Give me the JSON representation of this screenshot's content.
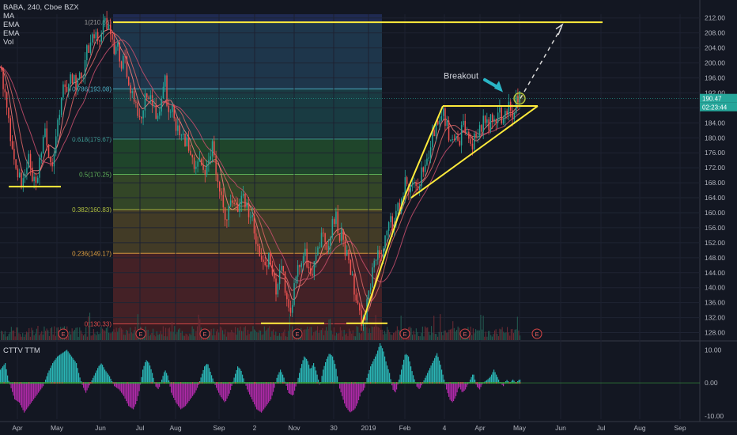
{
  "header": {
    "symbol_line": "BABA, 240, Cboe BZX",
    "indicators": [
      "MA",
      "EMA",
      "EMA",
      "Vol"
    ]
  },
  "indicator_panel": {
    "label": "CTTV TTM"
  },
  "chart_data": {
    "type": "candlestick",
    "symbol": "BABA",
    "interval": "240",
    "exchange": "Cboe BZX",
    "x_ticks": [
      "Apr",
      "May",
      "Jun",
      "Jul",
      "Aug",
      "Sep",
      "2",
      "Nov",
      "30",
      "2019",
      "Feb",
      "4",
      "Apr",
      "May",
      "Jun",
      "Jul",
      "Aug",
      "Sep"
    ],
    "y_ticks": [
      128,
      132,
      136,
      140,
      144,
      148,
      152,
      156,
      160,
      164,
      168,
      172,
      176,
      180,
      184,
      188,
      192,
      196,
      200,
      204,
      208,
      212
    ],
    "ylim": [
      126,
      213
    ],
    "last_price": "190.47",
    "countdown": "02:23:44",
    "fibonacci": [
      {
        "label": "1(210.86)",
        "ratio": 1,
        "value": 210.86
      },
      {
        "label": "0.786(193.08)",
        "ratio": 0.786,
        "value": 193.08
      },
      {
        "label": "0.618(179.67)",
        "ratio": 0.618,
        "value": 179.67
      },
      {
        "label": "0.5(170.25)",
        "ratio": 0.5,
        "value": 170.25
      },
      {
        "label": "0.382(160.83)",
        "ratio": 0.382,
        "value": 160.83
      },
      {
        "label": "0.236(149.17)",
        "ratio": 0.236,
        "value": 149.17
      },
      {
        "label": "0(130.33)",
        "ratio": 0,
        "value": 130.33
      }
    ],
    "annotations": [
      {
        "text": "Breakout"
      }
    ],
    "earnings_marker": "E",
    "earnings_count": 7,
    "price_path": [
      [
        0,
        199
      ],
      [
        4,
        194
      ],
      [
        8,
        188
      ],
      [
        12,
        181
      ],
      [
        16,
        176
      ],
      [
        20,
        172
      ],
      [
        24,
        169
      ],
      [
        28,
        167
      ],
      [
        32,
        171
      ],
      [
        36,
        175
      ],
      [
        40,
        170
      ],
      [
        44,
        168
      ],
      [
        48,
        172
      ],
      [
        52,
        178
      ],
      [
        56,
        183
      ],
      [
        60,
        178
      ],
      [
        64,
        172
      ],
      [
        68,
        176
      ],
      [
        72,
        184
      ],
      [
        76,
        190
      ],
      [
        80,
        194
      ],
      [
        84,
        193
      ],
      [
        88,
        195
      ],
      [
        92,
        197
      ],
      [
        96,
        194
      ],
      [
        100,
        198
      ],
      [
        104,
        196
      ],
      [
        108,
        202
      ],
      [
        112,
        205
      ],
      [
        116,
        206
      ],
      [
        120,
        208
      ],
      [
        124,
        207
      ],
      [
        128,
        209
      ],
      [
        132,
        210
      ],
      [
        136,
        209
      ],
      [
        140,
        208
      ],
      [
        144,
        204
      ],
      [
        148,
        205
      ],
      [
        152,
        200
      ],
      [
        156,
        202
      ],
      [
        160,
        197
      ],
      [
        164,
        194
      ],
      [
        168,
        190
      ],
      [
        172,
        187
      ],
      [
        176,
        185
      ],
      [
        180,
        189
      ],
      [
        184,
        192
      ],
      [
        188,
        191
      ],
      [
        192,
        188
      ],
      [
        196,
        186
      ],
      [
        200,
        188
      ],
      [
        204,
        190
      ],
      [
        208,
        195
      ],
      [
        212,
        187
      ],
      [
        216,
        188
      ],
      [
        220,
        184
      ],
      [
        224,
        182
      ],
      [
        228,
        183
      ],
      [
        232,
        180
      ],
      [
        236,
        179
      ],
      [
        240,
        177
      ],
      [
        244,
        173
      ],
      [
        248,
        172
      ],
      [
        252,
        175
      ],
      [
        256,
        171
      ],
      [
        260,
        170
      ],
      [
        264,
        176
      ],
      [
        268,
        178
      ],
      [
        272,
        172
      ],
      [
        276,
        168
      ],
      [
        280,
        164
      ],
      [
        284,
        158
      ],
      [
        288,
        160
      ],
      [
        292,
        162
      ],
      [
        296,
        164
      ],
      [
        300,
        160
      ],
      [
        304,
        166
      ],
      [
        308,
        162
      ],
      [
        312,
        162
      ],
      [
        316,
        158
      ],
      [
        320,
        157
      ],
      [
        324,
        152
      ],
      [
        328,
        150
      ],
      [
        332,
        146
      ],
      [
        336,
        144
      ],
      [
        340,
        149
      ],
      [
        344,
        142
      ],
      [
        348,
        139
      ],
      [
        352,
        144
      ],
      [
        356,
        146
      ],
      [
        360,
        140
      ],
      [
        364,
        133
      ],
      [
        368,
        131
      ],
      [
        372,
        143
      ],
      [
        376,
        145
      ],
      [
        380,
        146
      ],
      [
        384,
        150
      ],
      [
        388,
        147
      ],
      [
        392,
        143
      ],
      [
        396,
        146
      ],
      [
        400,
        150
      ],
      [
        404,
        152
      ],
      [
        408,
        154
      ],
      [
        412,
        151
      ],
      [
        416,
        153
      ],
      [
        420,
        157
      ],
      [
        424,
        159
      ],
      [
        428,
        152
      ],
      [
        432,
        156
      ],
      [
        436,
        150
      ],
      [
        440,
        148
      ],
      [
        444,
        143
      ],
      [
        448,
        138
      ],
      [
        452,
        135
      ],
      [
        456,
        131
      ],
      [
        460,
        132
      ],
      [
        464,
        136
      ],
      [
        468,
        141
      ],
      [
        472,
        146
      ],
      [
        476,
        150
      ],
      [
        480,
        148
      ],
      [
        484,
        152
      ],
      [
        488,
        156
      ],
      [
        492,
        158
      ],
      [
        496,
        157
      ],
      [
        500,
        160
      ],
      [
        504,
        161
      ],
      [
        508,
        164
      ],
      [
        512,
        168
      ],
      [
        516,
        167
      ],
      [
        520,
        170
      ],
      [
        524,
        168
      ],
      [
        528,
        166
      ],
      [
        532,
        170
      ],
      [
        536,
        172
      ],
      [
        540,
        175
      ],
      [
        544,
        178
      ],
      [
        548,
        182
      ],
      [
        552,
        184
      ],
      [
        556,
        187
      ],
      [
        560,
        186
      ],
      [
        564,
        183
      ],
      [
        568,
        180
      ],
      [
        572,
        181
      ],
      [
        576,
        182
      ],
      [
        580,
        179
      ],
      [
        584,
        184
      ],
      [
        588,
        181
      ],
      [
        592,
        179
      ],
      [
        596,
        177
      ],
      [
        600,
        180
      ],
      [
        604,
        181
      ],
      [
        608,
        182
      ],
      [
        612,
        186
      ],
      [
        616,
        183
      ],
      [
        620,
        185
      ],
      [
        624,
        184
      ],
      [
        628,
        187
      ],
      [
        632,
        186
      ],
      [
        636,
        185
      ],
      [
        640,
        188
      ],
      [
        644,
        188
      ],
      [
        648,
        186
      ],
      [
        652,
        190
      ],
      [
        656,
        191
      ],
      [
        658,
        190.47
      ]
    ],
    "indicator": {
      "name": "CTTV TTM",
      "y_ticks": [
        10,
        0,
        -10
      ],
      "ylim": [
        -11,
        12
      ],
      "path": [
        [
          0,
          4
        ],
        [
          6,
          6
        ],
        [
          10,
          1
        ],
        [
          14,
          -2
        ],
        [
          18,
          -5
        ],
        [
          24,
          -6
        ],
        [
          30,
          -9
        ],
        [
          36,
          -7
        ],
        [
          42,
          -5
        ],
        [
          48,
          -3
        ],
        [
          54,
          -1
        ],
        [
          60,
          3
        ],
        [
          66,
          6
        ],
        [
          72,
          8
        ],
        [
          78,
          9
        ],
        [
          84,
          10
        ],
        [
          90,
          8
        ],
        [
          96,
          6
        ],
        [
          100,
          2
        ],
        [
          104,
          -1
        ],
        [
          108,
          -3
        ],
        [
          112,
          -1
        ],
        [
          118,
          2
        ],
        [
          124,
          5
        ],
        [
          128,
          6
        ],
        [
          132,
          4
        ],
        [
          138,
          2
        ],
        [
          144,
          -1
        ],
        [
          150,
          -2
        ],
        [
          156,
          -4
        ],
        [
          162,
          -7
        ],
        [
          168,
          -8
        ],
        [
          172,
          -6
        ],
        [
          176,
          -2
        ],
        [
          180,
          4
        ],
        [
          184,
          7
        ],
        [
          188,
          6
        ],
        [
          192,
          3
        ],
        [
          196,
          -1
        ],
        [
          200,
          -2
        ],
        [
          204,
          1
        ],
        [
          208,
          4
        ],
        [
          212,
          2
        ],
        [
          216,
          -3
        ],
        [
          222,
          -6
        ],
        [
          228,
          -8
        ],
        [
          234,
          -7
        ],
        [
          240,
          -5
        ],
        [
          246,
          -3
        ],
        [
          250,
          -1
        ],
        [
          254,
          2
        ],
        [
          258,
          5
        ],
        [
          262,
          6
        ],
        [
          266,
          3
        ],
        [
          272,
          -1
        ],
        [
          278,
          -4
        ],
        [
          284,
          -6
        ],
        [
          290,
          -3
        ],
        [
          296,
          2
        ],
        [
          300,
          5
        ],
        [
          304,
          4
        ],
        [
          308,
          1
        ],
        [
          312,
          -2
        ],
        [
          318,
          -5
        ],
        [
          324,
          -8
        ],
        [
          330,
          -9
        ],
        [
          336,
          -7
        ],
        [
          342,
          -5
        ],
        [
          346,
          -2
        ],
        [
          350,
          2
        ],
        [
          354,
          4
        ],
        [
          358,
          2
        ],
        [
          364,
          -3
        ],
        [
          370,
          -4
        ],
        [
          376,
          1
        ],
        [
          380,
          5
        ],
        [
          384,
          8
        ],
        [
          388,
          7
        ],
        [
          392,
          4
        ],
        [
          396,
          6
        ],
        [
          400,
          3
        ],
        [
          404,
          -1
        ],
        [
          408,
          4
        ],
        [
          412,
          7
        ],
        [
          416,
          9
        ],
        [
          420,
          8
        ],
        [
          424,
          5
        ],
        [
          428,
          -1
        ],
        [
          432,
          -4
        ],
        [
          436,
          -7
        ],
        [
          442,
          -9
        ],
        [
          448,
          -8
        ],
        [
          452,
          -6
        ],
        [
          456,
          -3
        ],
        [
          460,
          -2
        ],
        [
          464,
          2
        ],
        [
          468,
          5
        ],
        [
          472,
          7
        ],
        [
          476,
          9
        ],
        [
          480,
          12
        ],
        [
          484,
          10
        ],
        [
          488,
          6
        ],
        [
          492,
          3
        ],
        [
          496,
          -2
        ],
        [
          500,
          -3
        ],
        [
          504,
          1
        ],
        [
          508,
          5
        ],
        [
          512,
          9
        ],
        [
          516,
          8
        ],
        [
          520,
          4
        ],
        [
          526,
          -1
        ],
        [
          530,
          -2
        ],
        [
          536,
          1
        ],
        [
          542,
          4
        ],
        [
          548,
          7
        ],
        [
          552,
          9
        ],
        [
          556,
          6
        ],
        [
          560,
          2
        ],
        [
          564,
          -2
        ],
        [
          568,
          -5
        ],
        [
          572,
          -6
        ],
        [
          576,
          -4
        ],
        [
          580,
          -1
        ],
        [
          584,
          -3
        ],
        [
          588,
          -2
        ],
        [
          594,
          1
        ],
        [
          598,
          3
        ],
        [
          602,
          -1
        ],
        [
          606,
          -2
        ],
        [
          610,
          0
        ],
        [
          616,
          1
        ],
        [
          620,
          2
        ],
        [
          624,
          4
        ],
        [
          628,
          2
        ],
        [
          632,
          0
        ],
        [
          636,
          -1
        ],
        [
          640,
          1
        ],
        [
          644,
          0
        ],
        [
          648,
          1
        ],
        [
          652,
          0
        ],
        [
          656,
          1
        ],
        [
          658,
          1
        ]
      ]
    }
  }
}
